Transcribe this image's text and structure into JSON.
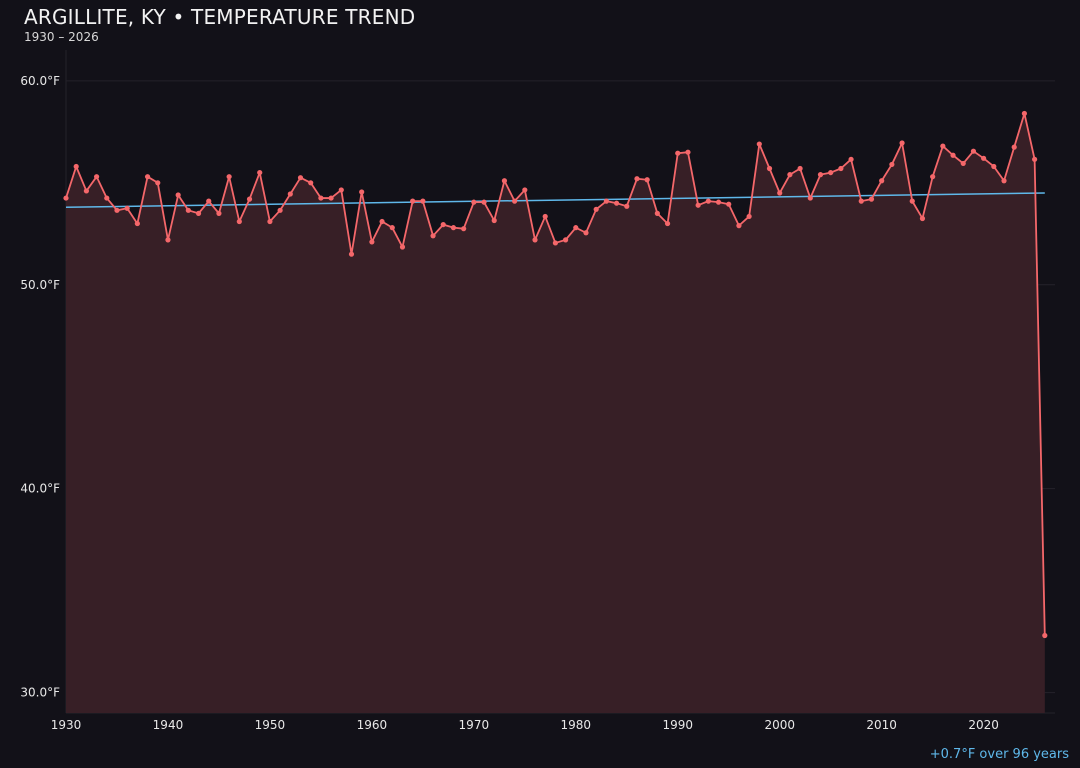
{
  "header": {
    "title": "ARGILLITE, KY • TEMPERATURE TREND",
    "subtitle": "1930 – 2026"
  },
  "footer": {
    "trend_note": "+0.7°F over 96 years"
  },
  "colors": {
    "background": "#121118",
    "series": "#f4676a",
    "fill": "#371f26",
    "trend": "#5fb8ea",
    "grid": "#24222a"
  },
  "chart_data": {
    "type": "area",
    "title": "ARGILLITE, KY • TEMPERATURE TREND",
    "subtitle": "1930 – 2026",
    "xlabel": "",
    "ylabel": "",
    "xlim": [
      1930,
      2027
    ],
    "ylim": [
      29,
      62.1
    ],
    "grid": true,
    "x_ticks": [
      1930,
      1940,
      1950,
      1960,
      1970,
      1980,
      1990,
      2000,
      2010,
      2020
    ],
    "x_tick_labels": [
      "1930",
      "1940",
      "1950",
      "1960",
      "1970",
      "1980",
      "1990",
      "2000",
      "2010",
      "2020"
    ],
    "y_ticks": [
      30,
      40,
      50,
      60
    ],
    "y_tick_labels": [
      "30.0°F",
      "40.0°F",
      "50.0°F",
      "60.0°F"
    ],
    "x_start": 1930,
    "values": [
      54.25,
      55.8,
      54.6,
      55.3,
      54.25,
      53.65,
      53.75,
      53.0,
      55.3,
      55.0,
      52.2,
      54.4,
      53.65,
      53.5,
      54.1,
      53.5,
      55.3,
      53.1,
      54.2,
      55.5,
      53.1,
      53.65,
      54.45,
      55.25,
      55.0,
      54.25,
      54.25,
      54.65,
      51.5,
      54.55,
      52.1,
      53.1,
      52.8,
      51.85,
      54.1,
      54.1,
      52.4,
      52.95,
      52.8,
      52.75,
      54.05,
      54.05,
      53.15,
      55.1,
      54.1,
      54.65,
      52.2,
      53.35,
      52.05,
      52.2,
      52.8,
      52.55,
      53.7,
      54.1,
      54.0,
      53.85,
      55.2,
      55.15,
      53.5,
      53.0,
      56.45,
      56.5,
      53.9,
      54.1,
      54.05,
      53.95,
      52.9,
      53.35,
      56.9,
      55.7,
      54.5,
      55.4,
      55.7,
      54.25,
      55.4,
      55.5,
      55.7,
      56.15,
      54.1,
      54.2,
      55.1,
      55.9,
      56.95,
      54.1,
      53.25,
      55.3,
      56.8,
      56.35,
      55.95,
      56.55,
      56.2,
      55.8,
      55.1,
      56.75,
      58.4,
      56.15,
      32.8
    ],
    "trend": {
      "x": [
        1930,
        2026
      ],
      "y": [
        53.8,
        54.5
      ],
      "change_label": "+0.7°F over 96 years"
    }
  }
}
